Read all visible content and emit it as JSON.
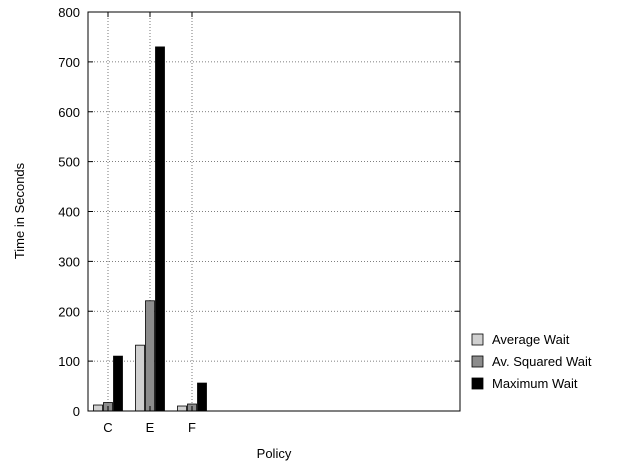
{
  "chart_data": {
    "type": "bar",
    "title": "",
    "xlabel": "Policy",
    "ylabel": "Time in Seconds",
    "categories": [
      "C",
      "E",
      "F"
    ],
    "ylim": [
      0,
      800
    ],
    "yticks": [
      0,
      100,
      200,
      300,
      400,
      500,
      600,
      700,
      800
    ],
    "grid": "dotted",
    "legend_position": "bottom-right-outside",
    "series": [
      {
        "name": "Average Wait",
        "color": "#d0d0d0",
        "values": [
          12,
          132,
          10
        ]
      },
      {
        "name": "Av. Squared Wait",
        "color": "#8c8c8c",
        "values": [
          17,
          221,
          14
        ]
      },
      {
        "name": "Maximum Wait",
        "color": "#000000",
        "values": [
          110,
          730,
          56
        ]
      }
    ]
  }
}
